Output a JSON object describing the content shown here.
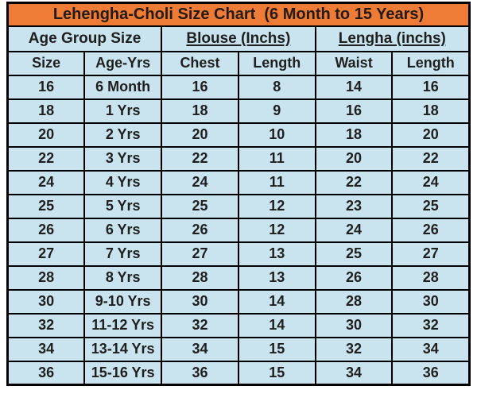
{
  "title": "Lehengha-Choli Size Chart  (6 Month to 15 Years)",
  "colors": {
    "title_bg": "#EE7C36",
    "cell_bg": "#C9E4EE",
    "border": "#000000",
    "text": "#1F1F1F"
  },
  "group_headers": [
    {
      "label": "Age Group Size",
      "underline": false
    },
    {
      "label": "Blouse (Inchs)",
      "underline": true
    },
    {
      "label": "Lengha (inchs)",
      "underline": true
    }
  ],
  "column_headers": [
    "Size",
    "Age-Yrs",
    "Chest",
    "Length",
    "Waist",
    "Length"
  ],
  "rows": [
    [
      "16",
      "6 Month",
      "16",
      "8",
      "14",
      "16"
    ],
    [
      "18",
      "1 Yrs",
      "18",
      "9",
      "16",
      "18"
    ],
    [
      "20",
      "2 Yrs",
      "20",
      "10",
      "18",
      "20"
    ],
    [
      "22",
      "3 Yrs",
      "22",
      "11",
      "20",
      "22"
    ],
    [
      "24",
      "4 Yrs",
      "24",
      "11",
      "22",
      "24"
    ],
    [
      "25",
      "5 Yrs",
      "25",
      "12",
      "23",
      "25"
    ],
    [
      "26",
      "6 Yrs",
      "26",
      "12",
      "24",
      "26"
    ],
    [
      "27",
      "7 Yrs",
      "27",
      "13",
      "25",
      "27"
    ],
    [
      "28",
      "8 Yrs",
      "28",
      "13",
      "26",
      "28"
    ],
    [
      "30",
      "9-10 Yrs",
      "30",
      "14",
      "28",
      "30"
    ],
    [
      "32",
      "11-12 Yrs",
      "32",
      "14",
      "30",
      "32"
    ],
    [
      "34",
      "13-14 Yrs",
      "34",
      "15",
      "32",
      "34"
    ],
    [
      "36",
      "15-16 Yrs",
      "36",
      "15",
      "34",
      "36"
    ]
  ]
}
